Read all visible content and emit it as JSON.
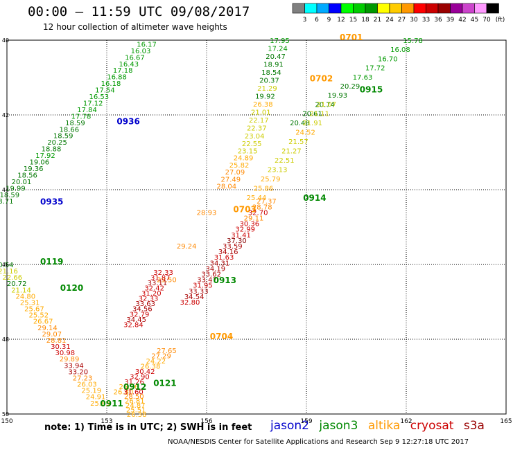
{
  "header": {
    "title": "00:00 – 11:59 UTC 09/08/2017",
    "subtitle": "12 hour collection of altimeter wave heights"
  },
  "scale": {
    "labels": [
      "3",
      "6",
      "9",
      "12",
      "15",
      "18",
      "21",
      "24",
      "27",
      "30",
      "33",
      "36",
      "39",
      "42",
      "45",
      "70"
    ],
    "unit": "(ft)",
    "colors": [
      "#808080",
      "#00ffff",
      "#00aaff",
      "#0000ff",
      "#00ff00",
      "#00cc00",
      "#009900",
      "#ffff00",
      "#ffcc00",
      "#ff9900",
      "#ff0000",
      "#cc0000",
      "#990000",
      "#990099",
      "#cc44cc",
      "#ff99ff",
      "#000000"
    ]
  },
  "footer": {
    "note": "note: 1) Time is in UTC; 2) SWH is in feet",
    "credit": "NOAA/NESDIS Center for Satellite Applications and Research  Sep  9 12:27:18 UTC 2017",
    "satellites": [
      {
        "name": "jason2",
        "color": "#0000cc"
      },
      {
        "name": "jason3",
        "color": "#008800"
      },
      {
        "name": "altika",
        "color": "#ff9900"
      },
      {
        "name": "cryosat",
        "color": "#cc0000"
      },
      {
        "name": "s3a",
        "color": "#990000"
      }
    ]
  },
  "chart_data": {
    "type": "scatter",
    "x_ticks": [
      "150",
      "153",
      "156",
      "159",
      "162",
      "165"
    ],
    "y_ticks": [
      "40",
      "42",
      "44",
      "46",
      "48",
      "50"
    ],
    "xlim": [
      150,
      165
    ],
    "ylim": [
      40,
      50
    ],
    "grid": true,
    "passes": [
      {
        "satellite": "jason3",
        "track": [
          [
            154.2,
            40.1
          ],
          [
            149.9,
            44.3
          ]
        ],
        "labels": [
          "16.17",
          "16.03",
          "16.67",
          "16.43",
          "17.18",
          "16.88",
          "16.18",
          "17.54",
          "16.53",
          "17.12",
          "17.84",
          "17.78",
          "18.59",
          "18.66",
          "18.59",
          "20.25",
          "18.88",
          "17.92",
          "19.06",
          "19.36",
          "18.56",
          "20.01",
          "19.99",
          "18.59",
          "18.71"
        ]
      },
      {
        "satellite": "jason2",
        "time": "0936",
        "pos": [
          153.3,
          42.25
        ]
      },
      {
        "satellite": "jason2",
        "time": "0935",
        "pos": [
          151.0,
          44.4
        ]
      },
      {
        "satellite": "altika",
        "time": "0701",
        "pos": [
          160.0,
          40.0
        ]
      },
      {
        "satellite": "altika",
        "track": [
          [
            158.2,
            40.0
          ],
          [
            157.4,
            42.7
          ],
          [
            156.6,
            43.9
          ]
        ],
        "labels": [
          "17.95",
          "17.24",
          "20.47",
          "18.91",
          "18.54",
          "20.37",
          "21.29",
          "19.92",
          "26.38",
          "21.01",
          "22.17",
          "22.37",
          "23.04",
          "22.55",
          "23.15",
          "24.89",
          "25.82",
          "27.09",
          "27.49",
          "28.04"
        ]
      },
      {
        "satellite": "altika",
        "time": "0702",
        "pos": [
          159.1,
          41.1
        ]
      },
      {
        "satellite": "altika",
        "time": "0703",
        "pos": [
          156.8,
          44.6
        ]
      },
      {
        "satellite": "altika",
        "track": [
          [
            156.0,
            44.6
          ],
          [
            154.8,
            46.4
          ]
        ],
        "labels": [
          "28.93",
          "29.24",
          "29.50"
        ]
      },
      {
        "satellite": "cryosat",
        "track": [
          [
            154.7,
            46.2
          ],
          [
            153.8,
            47.6
          ]
        ],
        "labels": [
          "32.33",
          "31.87",
          "33.11",
          "32.42",
          "31.20",
          "32.33",
          "33.63",
          "34.56",
          "32.79",
          "34.45",
          "32.84"
        ]
      },
      {
        "satellite": "altika",
        "time": "0704",
        "pos": [
          156.1,
          48.0
        ]
      },
      {
        "satellite": "jason3",
        "track": [
          [
            162.2,
            40.0
          ],
          [
            158.8,
            42.2
          ]
        ],
        "labels": [
          "15.78",
          "16.08",
          "16.70",
          "17.72",
          "17.63",
          "20.29",
          "19.93",
          "20.74",
          "20.61",
          "20.48"
        ]
      },
      {
        "satellite": "jason3",
        "time": "0915",
        "pos": [
          160.6,
          41.4
        ]
      },
      {
        "satellite": "altika",
        "track": [
          [
            159.6,
            41.7
          ],
          [
            157.5,
            44.2
          ]
        ],
        "labels": [
          "21.07",
          "21.11",
          "21.91",
          "24.52",
          "21.57",
          "21.27",
          "22.51",
          "23.13",
          "25.79",
          "25.86",
          "25.44"
        ]
      },
      {
        "satellite": "cryosat",
        "track": [
          [
            157.8,
            44.3
          ],
          [
            155.5,
            47.0
          ]
        ],
        "labels": [
          "27.37",
          "28.78",
          "32.70",
          "29.11",
          "30.36",
          "32.99",
          "31.41",
          "37.30",
          "33.59",
          "34.16",
          "31.63",
          "34.31",
          "34.19",
          "33.62",
          "33.47",
          "31.95",
          "33.33",
          "34.54",
          "32.80"
        ]
      },
      {
        "satellite": "jason3",
        "time": "0914",
        "pos": [
          158.9,
          44.3
        ]
      },
      {
        "satellite": "jason3",
        "time": "0913",
        "pos": [
          156.2,
          46.5
        ]
      },
      {
        "satellite": "jason3",
        "time": "0119",
        "pos": [
          151.0,
          46.0
        ]
      },
      {
        "satellite": "jason3",
        "time": "0120",
        "pos": [
          151.6,
          46.7
        ]
      },
      {
        "satellite": "altika",
        "track": [
          [
            149.9,
            46.0
          ],
          [
            152.8,
            49.7
          ]
        ],
        "labels": [
          "20.54",
          "21.16",
          "22.66",
          "20.72",
          "21.14",
          "24.80",
          "25.31",
          "25.67",
          "25.52",
          "26.67",
          "29.14",
          "29.07",
          "28.81",
          "30.31",
          "30.98",
          "29.89",
          "33.94",
          "33.20",
          "27.23",
          "26.03",
          "25.19",
          "24.91",
          "25.85"
        ]
      },
      {
        "satellite": "cryosat",
        "track": [
          [
            154.8,
            48.3
          ],
          [
            153.5,
            49.4
          ]
        ],
        "labels": [
          "27.65",
          "27.29",
          "24.22",
          "26.38",
          "30.42",
          "32.90",
          "31.26",
          "26.36",
          "26.40"
        ]
      },
      {
        "satellite": "jason3",
        "time": "0121",
        "pos": [
          154.4,
          49.25
        ]
      },
      {
        "satellite": "jason3",
        "time": "0912",
        "pos": [
          153.5,
          49.35
        ]
      },
      {
        "satellite": "jason3",
        "time": "0911",
        "pos": [
          152.8,
          49.8
        ]
      },
      {
        "satellite": "altika",
        "track": [
          [
            153.8,
            49.4
          ],
          [
            153.9,
            50.0
          ]
        ],
        "labels": [
          "31.60",
          "28.50",
          "26.81",
          "24.87",
          "25.51",
          "26.38"
        ]
      }
    ]
  }
}
